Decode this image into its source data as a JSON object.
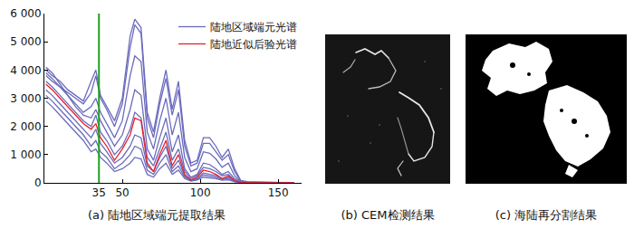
{
  "chart_data": {
    "type": "line",
    "x": [
      1,
      5,
      10,
      15,
      20,
      25,
      30,
      33,
      36,
      40,
      45,
      50,
      55,
      58,
      62,
      66,
      70,
      74,
      78,
      82,
      86,
      90,
      94,
      98,
      102,
      106,
      110,
      114,
      118,
      122,
      126,
      130,
      140,
      150,
      160
    ],
    "xlim": [
      0,
      165
    ],
    "xticks": [
      35,
      50,
      100,
      150
    ],
    "ylim": [
      0,
      6000
    ],
    "yticks": [
      0,
      {
        "value": 1000,
        "label": "1 000"
      },
      {
        "value": 2000,
        "label": "2 000"
      },
      {
        "value": 3000,
        "label": "3 000"
      },
      {
        "value": 4000,
        "label": "4 000"
      },
      {
        "value": 5000,
        "label": "5 000"
      },
      {
        "value": 6000,
        "label": "6 000"
      }
    ],
    "grid": false,
    "legend": "upper right",
    "vertical_line": {
      "x": 35,
      "color": "#22a022"
    },
    "series": [
      {
        "name": "陆地区域端元光谱",
        "color": "#6b6bbd",
        "values": [
          4000,
          3800,
          3600,
          3300,
          3100,
          2900,
          3600,
          4000,
          3100,
          2700,
          2200,
          3000,
          5200,
          5800,
          5500,
          2500,
          1800,
          3000,
          4000,
          2600,
          3600,
          1500,
          700,
          800,
          1600,
          1600,
          1300,
          900,
          1200,
          500,
          80,
          40,
          20,
          10,
          10
        ]
      },
      {
        "name": "陆地区域端元光谱",
        "color": "#6b6bbd",
        "values": [
          3800,
          3600,
          3400,
          3200,
          3000,
          2800,
          3200,
          3800,
          3000,
          2600,
          2000,
          2800,
          4800,
          5600,
          5300,
          2300,
          1600,
          2800,
          3700,
          2400,
          3300,
          1300,
          600,
          700,
          1400,
          1400,
          1100,
          800,
          1000,
          400,
          60,
          30,
          20,
          10,
          10
        ]
      },
      {
        "name": "陆地区域端元光谱",
        "color": "#6b6bbd",
        "values": [
          3900,
          3700,
          3400,
          3100,
          2800,
          2500,
          2700,
          3000,
          2500,
          2100,
          1600,
          2200,
          3800,
          4500,
          4300,
          1800,
          1200,
          2200,
          3000,
          1700,
          2500,
          900,
          400,
          500,
          1100,
          1050,
          850,
          550,
          700,
          250,
          40,
          20,
          10,
          5,
          5
        ]
      },
      {
        "name": "陆地区域端元光谱",
        "color": "#6b6bbd",
        "values": [
          4100,
          3900,
          3500,
          3100,
          2700,
          2400,
          2300,
          2600,
          2200,
          1800,
          1300,
          1700,
          2600,
          3300,
          3100,
          1200,
          800,
          1600,
          2300,
          1100,
          1700,
          500,
          200,
          300,
          700,
          650,
          500,
          300,
          400,
          150,
          30,
          20,
          10,
          5,
          5
        ]
      },
      {
        "name": "陆地区域端元光谱",
        "color": "#6b6bbd",
        "values": [
          3600,
          3400,
          3100,
          2800,
          2500,
          2200,
          2000,
          2400,
          1800,
          1500,
          1000,
          1300,
          1900,
          2500,
          2300,
          900,
          600,
          1200,
          1800,
          800,
          1200,
          400,
          150,
          250,
          550,
          500,
          400,
          250,
          300,
          100,
          20,
          10,
          5,
          5,
          5
        ]
      },
      {
        "name": "陆地区域端元光谱",
        "color": "#6b6bbd",
        "values": [
          3300,
          3100,
          2800,
          2500,
          2200,
          1900,
          1600,
          1900,
          1400,
          1100,
          700,
          900,
          1300,
          1700,
          1600,
          600,
          400,
          900,
          1300,
          500,
          800,
          250,
          100,
          150,
          350,
          300,
          250,
          150,
          200,
          60,
          10,
          5,
          5,
          5,
          5
        ]
      },
      {
        "name": "陆地区域端元光谱",
        "color": "#6b6bbd",
        "values": [
          3100,
          2900,
          2600,
          2300,
          2000,
          1700,
          1300,
          1500,
          1100,
          900,
          500,
          700,
          1000,
          1300,
          1200,
          450,
          300,
          700,
          1000,
          400,
          600,
          200,
          80,
          120,
          280,
          250,
          200,
          120,
          150,
          50,
          10,
          5,
          5,
          5,
          5
        ]
      },
      {
        "name": "陆地区域端元光谱",
        "color": "#6b6bbd",
        "values": [
          2900,
          2700,
          2400,
          2100,
          1800,
          1500,
          1100,
          1200,
          900,
          700,
          400,
          500,
          700,
          900,
          850,
          300,
          200,
          500,
          700,
          300,
          450,
          150,
          60,
          100,
          200,
          180,
          150,
          90,
          110,
          40,
          5,
          5,
          5,
          5,
          5
        ]
      },
      {
        "name": "陆地近似后验光谱",
        "color": "#e8202a",
        "values": [
          3500,
          3300,
          3000,
          2700,
          2400,
          2100,
          1900,
          2100,
          1600,
          1300,
          800,
          1200,
          1700,
          2300,
          2200,
          700,
          400,
          1000,
          1500,
          600,
          1000,
          300,
          100,
          200,
          450,
          400,
          300,
          150,
          250,
          80,
          10,
          5,
          0,
          0,
          0
        ]
      }
    ]
  },
  "panels": {
    "a": {
      "caption": "(a) 陆地区域端元提取结果"
    },
    "b": {
      "caption": "(b) CEM检测结果"
    },
    "c": {
      "caption": "(c) 海陆再分割结果"
    }
  }
}
